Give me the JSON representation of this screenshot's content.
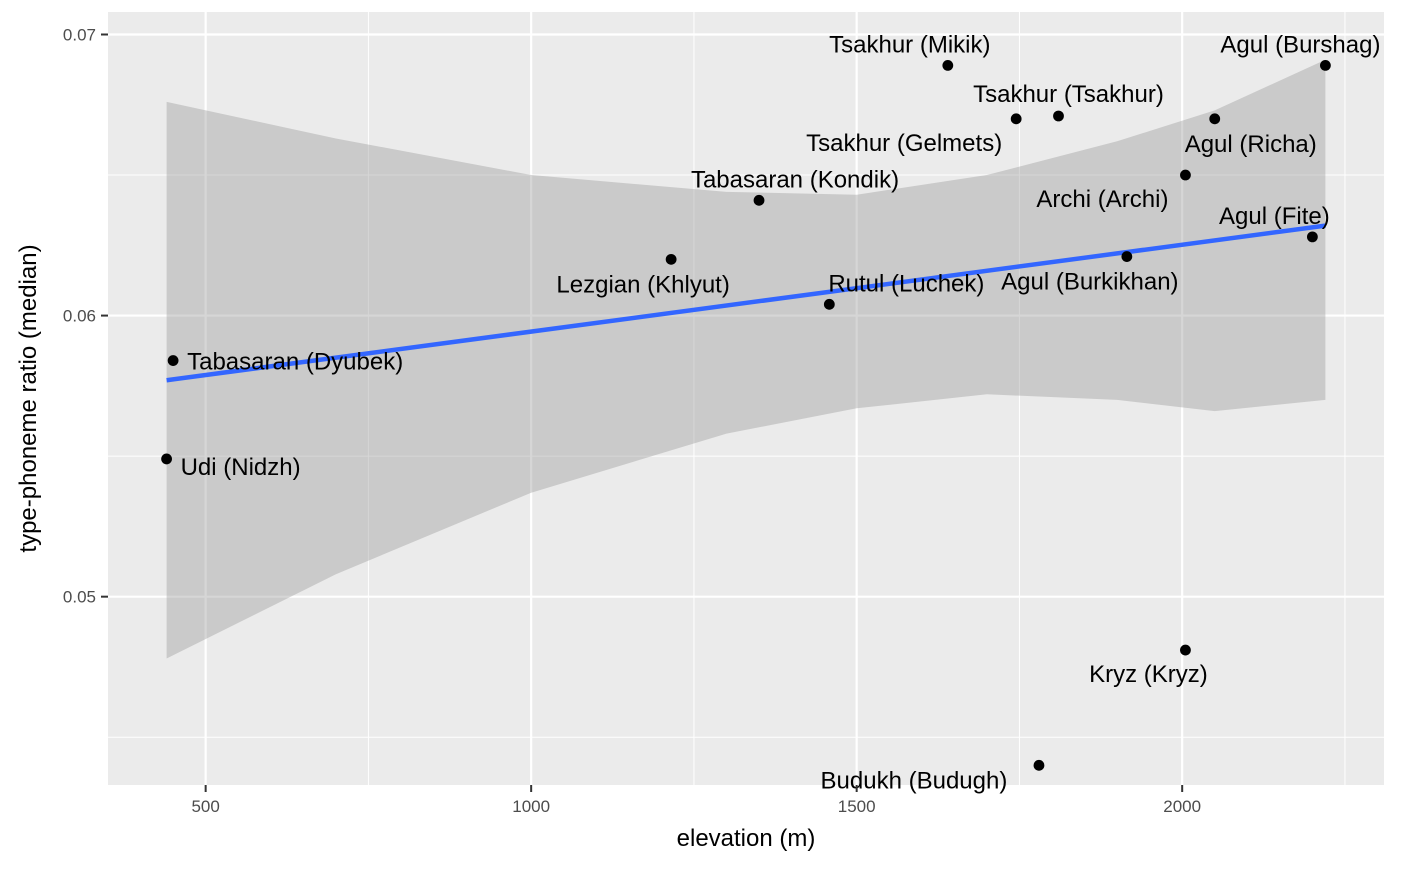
{
  "chart_data": {
    "type": "scatter",
    "title": "",
    "xlabel": "elevation (m)",
    "ylabel": "type-phoneme ratio (median)",
    "xlim": [
      350,
      2310
    ],
    "ylim": [
      0.0433,
      0.0708
    ],
    "x_ticks": [
      500,
      1000,
      1500,
      2000
    ],
    "x_tick_labels": [
      "500",
      "1000",
      "1500",
      "2000"
    ],
    "y_ticks": [
      0.05,
      0.06,
      0.07
    ],
    "y_tick_labels": [
      "0.05",
      "0.06",
      "0.07"
    ],
    "grid": true,
    "legend": "none",
    "points": [
      {
        "label": "Udi (Nidzh)",
        "x": 440,
        "y": 0.0549
      },
      {
        "label": "Tabasaran (Dyubek)",
        "x": 450,
        "y": 0.0584
      },
      {
        "label": "Lezgian (Khlyut)",
        "x": 1215,
        "y": 0.062
      },
      {
        "label": "Tabasaran (Kondik)",
        "x": 1350,
        "y": 0.0641
      },
      {
        "label": "Rutul (Luchek)",
        "x": 1458,
        "y": 0.0604
      },
      {
        "label": "Tsakhur (Mikik)",
        "x": 1640,
        "y": 0.0689
      },
      {
        "label": "Tsakhur (Gelmets)",
        "x": 1745,
        "y": 0.067
      },
      {
        "label": "Budukh (Budugh)",
        "x": 1780,
        "y": 0.044
      },
      {
        "label": "Tsakhur (Tsakhur)",
        "x": 1810,
        "y": 0.0671
      },
      {
        "label": "Agul (Burkikhan)",
        "x": 1915,
        "y": 0.0621
      },
      {
        "label": "Archi (Archi)",
        "x": 2005,
        "y": 0.065
      },
      {
        "label": "Kryz (Kryz)",
        "x": 2005,
        "y": 0.0481
      },
      {
        "label": "Agul (Richa)",
        "x": 2050,
        "y": 0.067
      },
      {
        "label": "Agul (Fite)",
        "x": 2200,
        "y": 0.0628
      },
      {
        "label": "Agul (Burshag)",
        "x": 2220,
        "y": 0.0689
      }
    ],
    "trend": {
      "method": "linear fit",
      "x": [
        440,
        2220
      ],
      "y": [
        0.0577,
        0.0632
      ]
    },
    "confidence_band": {
      "x": [
        440,
        700,
        1000,
        1300,
        1500,
        1700,
        1900,
        2050,
        2220
      ],
      "upper": [
        0.0676,
        0.0663,
        0.065,
        0.0644,
        0.0643,
        0.065,
        0.0662,
        0.0673,
        0.0691
      ],
      "lower": [
        0.0478,
        0.0508,
        0.0537,
        0.0558,
        0.0567,
        0.0572,
        0.057,
        0.0566,
        0.057
      ]
    },
    "colors": {
      "panel": "#ebebeb",
      "grid": "#ffffff",
      "point": "#000000",
      "trend": "#3366ff",
      "band": "#999999"
    }
  }
}
